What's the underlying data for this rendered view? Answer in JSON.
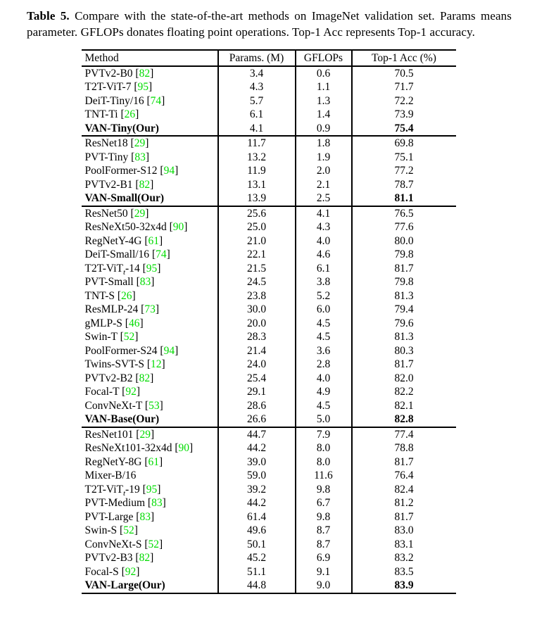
{
  "caption": {
    "label": "Table 5.",
    "text": "Compare with the state-of-the-art methods on ImageNet validation set. Params means parameter. GFLOPs donates floating point operations. Top-1 Acc represents Top-1 accuracy."
  },
  "colors": {
    "citation_green": "#00dc00",
    "text": "#000000",
    "background": "#ffffff"
  },
  "table": {
    "columns": [
      "Method",
      "Params. (M)",
      "GFLOPs",
      "Top-1 Acc (%)"
    ],
    "groups": [
      {
        "rows": [
          {
            "method": "PVTv2-B0",
            "ref": "82",
            "params": "3.4",
            "gflops": "0.6",
            "acc": "70.5",
            "ours": false
          },
          {
            "method": "T2T-ViT-7",
            "ref": "95",
            "params": "4.3",
            "gflops": "1.1",
            "acc": "71.7",
            "ours": false
          },
          {
            "method": "DeiT-Tiny/16",
            "ref": "74",
            "params": "5.7",
            "gflops": "1.3",
            "acc": "72.2",
            "ours": false
          },
          {
            "method": "TNT-Ti",
            "ref": "26",
            "params": "6.1",
            "gflops": "1.4",
            "acc": "73.9",
            "ours": false
          },
          {
            "method": "VAN-Tiny(Our)",
            "ref": null,
            "params": "4.1",
            "gflops": "0.9",
            "acc": "75.4",
            "ours": true
          }
        ]
      },
      {
        "rows": [
          {
            "method": "ResNet18",
            "ref": "29",
            "params": "11.7",
            "gflops": "1.8",
            "acc": "69.8",
            "ours": false
          },
          {
            "method": "PVT-Tiny",
            "ref": "83",
            "params": "13.2",
            "gflops": "1.9",
            "acc": "75.1",
            "ours": false
          },
          {
            "method": "PoolFormer-S12",
            "ref": "94",
            "params": "11.9",
            "gflops": "2.0",
            "acc": "77.2",
            "ours": false
          },
          {
            "method": "PVTv2-B1",
            "ref": "82",
            "params": "13.1",
            "gflops": "2.1",
            "acc": "78.7",
            "ours": false
          },
          {
            "method": "VAN-Small(Our)",
            "ref": null,
            "params": "13.9",
            "gflops": "2.5",
            "acc": "81.1",
            "ours": true
          }
        ]
      },
      {
        "rows": [
          {
            "method": "ResNet50",
            "ref": "29",
            "params": "25.6",
            "gflops": "4.1",
            "acc": "76.5",
            "ours": false
          },
          {
            "method": "ResNeXt50-32x4d",
            "ref": "90",
            "params": "25.0",
            "gflops": "4.3",
            "acc": "77.6",
            "ours": false
          },
          {
            "method": "RegNetY-4G",
            "ref": "61",
            "params": "21.0",
            "gflops": "4.0",
            "acc": "80.0",
            "ours": false
          },
          {
            "method": "DeiT-Small/16",
            "ref": "74",
            "params": "22.1",
            "gflops": "4.6",
            "acc": "79.8",
            "ours": false
          },
          {
            "method": "T2T-ViT_{t}-14",
            "ref": "95",
            "params": "21.5",
            "gflops": "6.1",
            "acc": "81.7",
            "ours": false
          },
          {
            "method": "PVT-Small",
            "ref": "83",
            "params": "24.5",
            "gflops": "3.8",
            "acc": "79.8",
            "ours": false
          },
          {
            "method": "TNT-S",
            "ref": "26",
            "params": "23.8",
            "gflops": "5.2",
            "acc": "81.3",
            "ours": false
          },
          {
            "method": "ResMLP-24",
            "ref": "73",
            "params": "30.0",
            "gflops": "6.0",
            "acc": "79.4",
            "ours": false
          },
          {
            "method": "gMLP-S",
            "ref": "46",
            "params": "20.0",
            "gflops": "4.5",
            "acc": "79.6",
            "ours": false
          },
          {
            "method": "Swin-T",
            "ref": "52",
            "params": "28.3",
            "gflops": "4.5",
            "acc": "81.3",
            "ours": false
          },
          {
            "method": "PoolFormer-S24",
            "ref": "94",
            "params": "21.4",
            "gflops": "3.6",
            "acc": "80.3",
            "ours": false
          },
          {
            "method": "Twins-SVT-S",
            "ref": "12",
            "params": "24.0",
            "gflops": "2.8",
            "acc": "81.7",
            "ours": false
          },
          {
            "method": "PVTv2-B2",
            "ref": "82",
            "params": "25.4",
            "gflops": "4.0",
            "acc": "82.0",
            "ours": false
          },
          {
            "method": "Focal-T",
            "ref": "92",
            "params": "29.1",
            "gflops": "4.9",
            "acc": "82.2",
            "ours": false
          },
          {
            "method": "ConvNeXt-T",
            "ref": "53",
            "params": "28.6",
            "gflops": "4.5",
            "acc": "82.1",
            "ours": false
          },
          {
            "method": "VAN-Base(Our)",
            "ref": null,
            "params": "26.6",
            "gflops": "5.0",
            "acc": "82.8",
            "ours": true
          }
        ]
      },
      {
        "rows": [
          {
            "method": "ResNet101",
            "ref": "29",
            "params": "44.7",
            "gflops": "7.9",
            "acc": "77.4",
            "ours": false
          },
          {
            "method": "ResNeXt101-32x4d",
            "ref": "90",
            "params": "44.2",
            "gflops": "8.0",
            "acc": "78.8",
            "ours": false
          },
          {
            "method": "RegNetY-8G",
            "ref": "61",
            "params": "39.0",
            "gflops": "8.0",
            "acc": "81.7",
            "ours": false
          },
          {
            "method": "Mixer-B/16",
            "ref": null,
            "params": "59.0",
            "gflops": "11.6",
            "acc": "76.4",
            "ours": false
          },
          {
            "method": "T2T-ViT_{t}-19",
            "ref": "95",
            "params": "39.2",
            "gflops": "9.8",
            "acc": "82.4",
            "ours": false
          },
          {
            "method": "PVT-Medium",
            "ref": "83",
            "params": "44.2",
            "gflops": "6.7",
            "acc": "81.2",
            "ours": false
          },
          {
            "method": "PVT-Large",
            "ref": "83",
            "params": "61.4",
            "gflops": "9.8",
            "acc": "81.7",
            "ours": false
          },
          {
            "method": "Swin-S",
            "ref": "52",
            "params": "49.6",
            "gflops": "8.7",
            "acc": "83.0",
            "ours": false
          },
          {
            "method": "ConvNeXt-S",
            "ref": "52",
            "params": "50.1",
            "gflops": "8.7",
            "acc": "83.1",
            "ours": false
          },
          {
            "method": "PVTv2-B3",
            "ref": "82",
            "params": "45.2",
            "gflops": "6.9",
            "acc": "83.2",
            "ours": false
          },
          {
            "method": "Focal-S",
            "ref": "92",
            "params": "51.1",
            "gflops": "9.1",
            "acc": "83.5",
            "ours": false
          },
          {
            "method": "VAN-Large(Our)",
            "ref": null,
            "params": "44.8",
            "gflops": "9.0",
            "acc": "83.9",
            "ours": true
          }
        ]
      }
    ]
  }
}
